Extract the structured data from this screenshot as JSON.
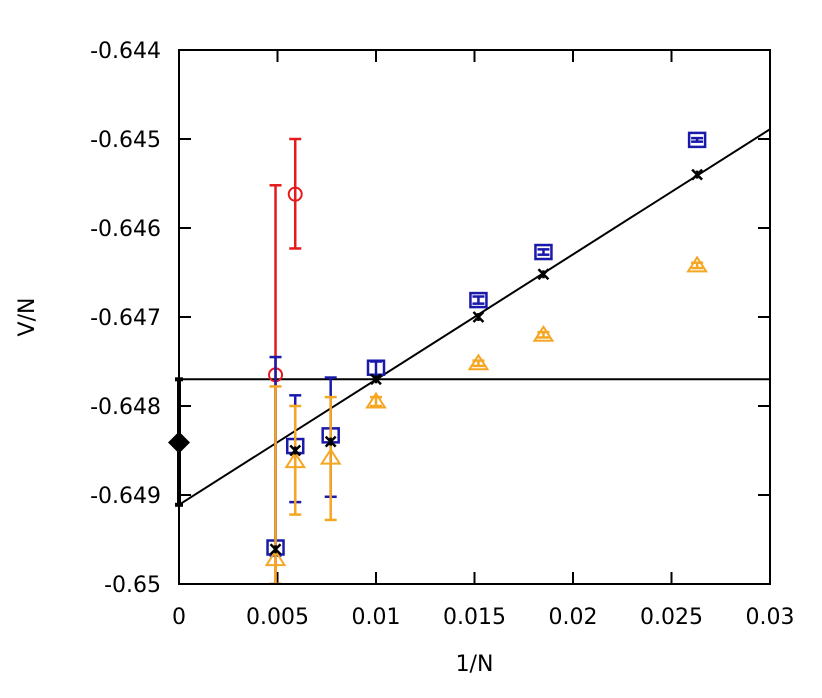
{
  "chart_data": {
    "type": "scatter",
    "xlabel": "1/N",
    "ylabel": "V/N",
    "xlim": [
      0,
      0.03
    ],
    "ylim": [
      -0.65,
      -0.644
    ],
    "x_ticks": [
      0,
      0.005,
      0.01,
      0.015,
      0.02,
      0.025,
      0.03
    ],
    "x_tick_labels": [
      "0",
      "0.005",
      "0.01",
      "0.015",
      "0.02",
      "0.025",
      "0.03"
    ],
    "y_ticks": [
      -0.65,
      -0.649,
      -0.648,
      -0.647,
      -0.646,
      -0.645,
      -0.644
    ],
    "y_tick_labels": [
      "-0.65",
      "-0.649",
      "-0.648",
      "-0.647",
      "-0.646",
      "-0.645",
      "-0.644"
    ],
    "grid": false,
    "legend": "none",
    "series": [
      {
        "marker": "circle",
        "color": "#e41a1c",
        "points": [
          {
            "x": 0.0049,
            "y": -0.64765,
            "lo": -0.65,
            "hi": -0.64552
          },
          {
            "x": 0.0059,
            "y": -0.64562,
            "lo": -0.64623,
            "hi": -0.645
          }
        ]
      },
      {
        "marker": "square",
        "color": "#1a1aaa",
        "points": [
          {
            "x": 0.0049,
            "y": -0.64959,
            "lo": -0.64968,
            "hi": -0.64745
          },
          {
            "x": 0.0059,
            "y": -0.64845,
            "lo": -0.64908,
            "hi": -0.64788
          },
          {
            "x": 0.0077,
            "y": -0.64833,
            "lo": -0.64902,
            "hi": -0.64768
          },
          {
            "x": 0.01,
            "y": -0.64757,
            "lo": -0.64765,
            "hi": -0.6475
          },
          {
            "x": 0.0152,
            "y": -0.64681,
            "lo": -0.64685,
            "hi": -0.64677
          },
          {
            "x": 0.0185,
            "y": -0.64627,
            "lo": -0.6463,
            "hi": -0.64624
          },
          {
            "x": 0.0263,
            "y": -0.64501,
            "lo": -0.64503,
            "hi": -0.64499
          }
        ]
      },
      {
        "marker": "triangle",
        "color": "#f5a623",
        "points": [
          {
            "x": 0.0049,
            "y": -0.64972,
            "lo": -0.65,
            "hi": -0.64778
          },
          {
            "x": 0.0059,
            "y": -0.64862,
            "lo": -0.64922,
            "hi": -0.648
          },
          {
            "x": 0.0077,
            "y": -0.64858,
            "lo": -0.64928,
            "hi": -0.6479
          },
          {
            "x": 0.01,
            "y": -0.64795,
            "lo": -0.648,
            "hi": -0.6479
          },
          {
            "x": 0.0152,
            "y": -0.64752,
            "lo": -0.64755,
            "hi": -0.64749
          },
          {
            "x": 0.0185,
            "y": -0.6472,
            "lo": -0.64723,
            "hi": -0.64717
          },
          {
            "x": 0.0263,
            "y": -0.64642,
            "lo": -0.64645,
            "hi": -0.64639
          }
        ]
      },
      {
        "marker": "star",
        "color": "#000000",
        "points": [
          {
            "x": 0.0049,
            "y": -0.64961
          },
          {
            "x": 0.0059,
            "y": -0.6485
          },
          {
            "x": 0.0077,
            "y": -0.6484
          },
          {
            "x": 0.01,
            "y": -0.6477
          },
          {
            "x": 0.0152,
            "y": -0.647
          },
          {
            "x": 0.0185,
            "y": -0.64652
          },
          {
            "x": 0.0263,
            "y": -0.6454
          }
        ]
      }
    ],
    "fit_lines": [
      {
        "color": "#000000",
        "points": [
          [
            0,
            -0.64911
          ],
          [
            0.03,
            -0.64489
          ]
        ]
      },
      {
        "color": "#000000",
        "points": [
          [
            0,
            -0.6477
          ],
          [
            0.03,
            -0.6477
          ]
        ]
      }
    ],
    "extrapolated": {
      "marker": "diamond",
      "color": "#000000",
      "x": 0,
      "y": -0.64841,
      "lo": -0.64911,
      "hi": -0.6477
    }
  }
}
